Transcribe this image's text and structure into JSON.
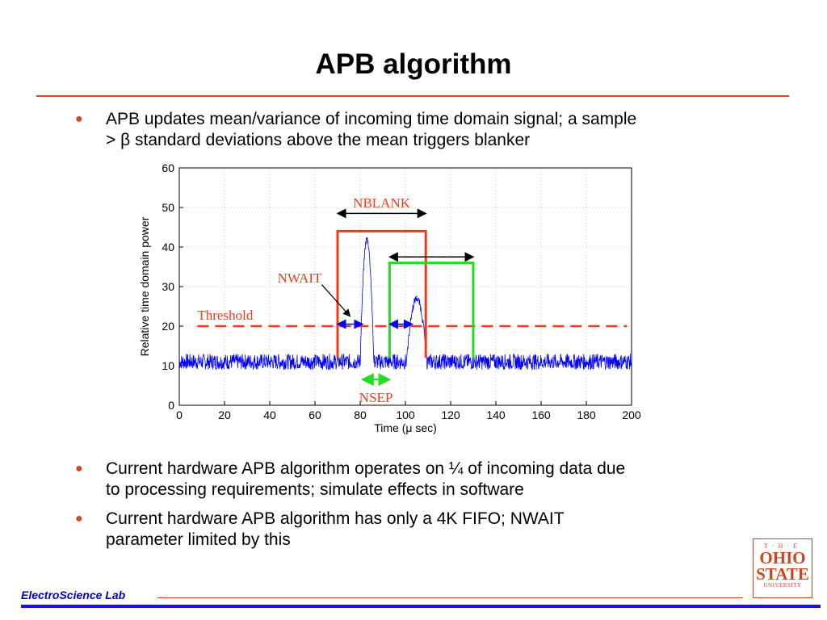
{
  "slide": {
    "title": "APB algorithm",
    "bullets": [
      {
        "lines": [
          "APB updates mean/variance of incoming time domain signal; a sample",
          "> β standard deviations above the mean triggers blanker"
        ]
      },
      {
        "lines": [
          "Current hardware APB algorithm operates on ¼ of incoming data due",
          "to processing requirements; simulate effects in software"
        ]
      },
      {
        "lines": [
          "Current hardware APB algorithm has only a 4K FIFO; NWAIT",
          "parameter limited by this"
        ]
      }
    ],
    "footer": "ElectroScience Lab",
    "logo": {
      "the": "T·H·E",
      "ohio": "OHIO",
      "state": "STATE",
      "university": "UNIVERSITY"
    },
    "colors": {
      "accent": "#ee3b1a",
      "footer_blue": "#1a10e0",
      "signal": "#0000ff",
      "nblank": "#ee3b1a",
      "nsep": "#22dd22"
    }
  },
  "chart_data": {
    "type": "line",
    "xlabel": "Time (μ sec)",
    "ylabel": "Relative time domain power",
    "xlim": [
      0,
      200
    ],
    "ylim": [
      0,
      60
    ],
    "xticks": [
      0,
      20,
      40,
      60,
      80,
      100,
      120,
      140,
      160,
      180,
      200
    ],
    "yticks": [
      0,
      10,
      20,
      30,
      40,
      50,
      60
    ],
    "grid": true,
    "baseline": 11,
    "noise_amplitude": 2,
    "pulses": [
      {
        "center": 83,
        "peak": 42,
        "halfwidth": 3
      },
      {
        "center": 105,
        "peak": 27,
        "halfwidth": 4.5
      }
    ],
    "threshold": 20,
    "annotations": {
      "threshold_label": "Threshold",
      "nblank": {
        "label": "NBLANK",
        "x0": 70,
        "x1": 109,
        "level": 44
      },
      "nblank2": {
        "x0": 93,
        "x1": 130,
        "level": 36
      },
      "nwait": {
        "label": "NWAIT",
        "arrows": [
          [
            70,
            81
          ],
          [
            93,
            103
          ]
        ],
        "level": 20.5
      },
      "nsep": {
        "label": "NSEP",
        "x0": 81,
        "x1": 93,
        "level": 6.5
      }
    }
  }
}
